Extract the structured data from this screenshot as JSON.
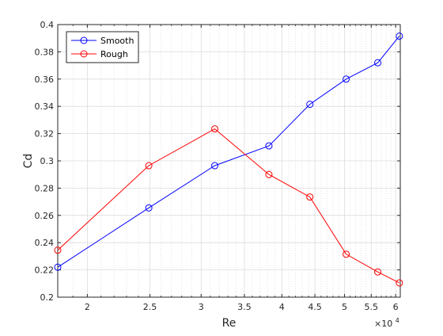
{
  "chart_data": {
    "type": "line",
    "title": "",
    "xlabel": "Re",
    "ylabel": "Cd",
    "x_scale": "log",
    "x_multiplier": "×10",
    "x_multiplier_exponent": "4",
    "xlim": [
      1.8,
      6.1
    ],
    "ylim": [
      0.2,
      0.4
    ],
    "x_ticks": [
      2,
      2.5,
      3,
      3.5,
      4,
      4.5,
      5,
      5.5,
      6
    ],
    "x_tick_labels": [
      "2",
      "2.5",
      "3",
      "3.5",
      "4",
      "4.5",
      "5",
      "5.5",
      "6"
    ],
    "x_minor_ticks": [
      1.9,
      2.1,
      2.2,
      2.3,
      2.4,
      2.6,
      2.7,
      2.8,
      2.9,
      3.1,
      3.2,
      3.3,
      3.4,
      3.6,
      3.7,
      3.8,
      3.9,
      4.1,
      4.2,
      4.3,
      4.4,
      4.6,
      4.7,
      4.8,
      4.9,
      5.1,
      5.2,
      5.3,
      5.4,
      5.6,
      5.7,
      5.8,
      5.9
    ],
    "y_ticks": [
      0.2,
      0.22,
      0.24,
      0.26,
      0.28,
      0.3,
      0.32,
      0.34,
      0.36,
      0.38,
      0.4
    ],
    "y_tick_labels": [
      "0.2",
      "0.22",
      "0.24",
      "0.26",
      "0.28",
      "0.3",
      "0.32",
      "0.34",
      "0.36",
      "0.38",
      "0.4"
    ],
    "grid": true,
    "minor_grid": true,
    "legend_position": "top-left",
    "series": [
      {
        "name": "Smooth",
        "color": "#0000ff",
        "marker": "circle",
        "x": [
          1.8,
          2.49,
          3.15,
          3.82,
          4.42,
          5.03,
          5.63,
          6.08
        ],
        "y": [
          0.222,
          0.2655,
          0.2965,
          0.311,
          0.3415,
          0.36,
          0.372,
          0.3915
        ]
      },
      {
        "name": "Rough",
        "color": "#ff0000",
        "marker": "circle",
        "x": [
          1.8,
          2.49,
          3.15,
          3.82,
          4.42,
          5.03,
          5.63,
          6.08
        ],
        "y": [
          0.2345,
          0.2965,
          0.3235,
          0.29,
          0.2735,
          0.2315,
          0.2185,
          0.2105
        ]
      }
    ]
  }
}
